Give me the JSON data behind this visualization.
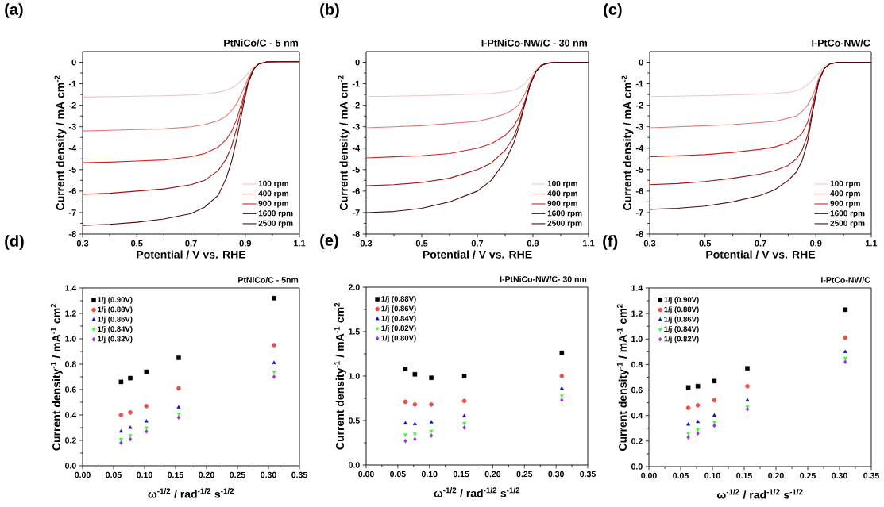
{
  "chart_data": [
    {
      "type": "line",
      "title": "PtNiCo/C - 5 nm",
      "xlabel": "Potential / V vs. RHE",
      "ylabel": "Current density / mA cm$^{-2}$",
      "annotations": [
        "(a)"
      ],
      "xlim": [
        0.3,
        1.1
      ],
      "ylim": [
        -8,
        0.5
      ],
      "xticks": [
        0.3,
        0.5,
        0.7,
        0.9,
        1.1
      ],
      "yticks": [
        -8,
        -7,
        -6,
        -5,
        -4,
        -3,
        -2,
        -1,
        0
      ],
      "legend": "bottom right",
      "grid": false,
      "line_style": "solid",
      "x": [
        0.3,
        0.4,
        0.5,
        0.6,
        0.7,
        0.75,
        0.8,
        0.83,
        0.85,
        0.87,
        0.89,
        0.91,
        0.93,
        0.95,
        0.98,
        1.02,
        1.1
      ],
      "series": [
        {
          "name": "100 rpm",
          "color": "#f2c4c4",
          "values": [
            -1.62,
            -1.6,
            -1.58,
            -1.56,
            -1.52,
            -1.48,
            -1.4,
            -1.3,
            -1.2,
            -1.05,
            -0.8,
            -0.5,
            -0.22,
            -0.06,
            0.02,
            null,
            null
          ]
        },
        {
          "name": "400 rpm",
          "color": "#e07a7a",
          "values": [
            -3.2,
            -3.17,
            -3.13,
            -3.1,
            -3.0,
            -2.9,
            -2.72,
            -2.5,
            -2.25,
            -1.9,
            -1.35,
            -0.75,
            -0.3,
            -0.07,
            0.02,
            0.03,
            0.03
          ]
        },
        {
          "name": "900 rpm",
          "color": "#d42020",
          "values": [
            -4.68,
            -4.65,
            -4.6,
            -4.55,
            -4.4,
            -4.25,
            -3.95,
            -3.6,
            -3.2,
            -2.6,
            -1.75,
            -0.9,
            -0.33,
            -0.08,
            0.02,
            0.03,
            0.03
          ]
        },
        {
          "name": "1600 rpm",
          "color": "#9e1414",
          "values": [
            -6.15,
            -6.1,
            -6.0,
            -5.9,
            -5.7,
            -5.5,
            -5.05,
            -4.5,
            -3.9,
            -3.0,
            -1.95,
            -0.95,
            -0.35,
            -0.08,
            0.02,
            0.03,
            0.03
          ]
        },
        {
          "name": "2500 rpm",
          "color": "#4a0c0c",
          "values": [
            -7.6,
            -7.55,
            -7.45,
            -7.3,
            -7.05,
            -6.75,
            -6.2,
            -5.4,
            -4.6,
            -3.5,
            -2.2,
            -1.0,
            -0.35,
            -0.08,
            0.02,
            0.03,
            0.03
          ]
        }
      ]
    },
    {
      "type": "line",
      "title": "I-PtNiCo-NW/C - 30 nm",
      "xlabel": "Potential / V vs. RHE",
      "ylabel": "Current density / mA cm$^{-2}$",
      "annotations": [
        "(b)"
      ],
      "xlim": [
        0.3,
        1.1
      ],
      "ylim": [
        -8,
        0.5
      ],
      "xticks": [
        0.3,
        0.5,
        0.7,
        0.9,
        1.1
      ],
      "yticks": [
        -8,
        -7,
        -6,
        -5,
        -4,
        -3,
        -2,
        -1,
        0
      ],
      "legend": "bottom right",
      "grid": false,
      "line_style": "solid",
      "x": [
        0.3,
        0.4,
        0.5,
        0.6,
        0.7,
        0.75,
        0.8,
        0.83,
        0.85,
        0.87,
        0.89,
        0.91,
        0.93,
        0.95,
        0.98,
        1.02,
        1.1
      ],
      "series": [
        {
          "name": "100 rpm",
          "color": "#f2c4c4",
          "values": [
            -1.6,
            -1.58,
            -1.55,
            -1.52,
            -1.48,
            -1.45,
            -1.38,
            -1.3,
            -1.2,
            -1.0,
            -0.7,
            -0.35,
            -0.13,
            -0.04,
            0,
            0,
            0
          ]
        },
        {
          "name": "400 rpm",
          "color": "#e07a7a",
          "values": [
            -3.05,
            -3.0,
            -2.95,
            -2.85,
            -2.75,
            -2.6,
            -2.4,
            -2.2,
            -1.95,
            -1.5,
            -0.9,
            -0.42,
            -0.15,
            -0.05,
            0,
            0,
            0
          ]
        },
        {
          "name": "900 rpm",
          "color": "#d42020",
          "values": [
            -4.45,
            -4.4,
            -4.35,
            -4.25,
            -4.0,
            -3.8,
            -3.4,
            -3.0,
            -2.55,
            -1.85,
            -1.0,
            -0.45,
            -0.15,
            -0.05,
            0,
            0,
            0
          ]
        },
        {
          "name": "1600 rpm",
          "color": "#9e1414",
          "values": [
            -5.75,
            -5.7,
            -5.6,
            -5.4,
            -5.0,
            -4.7,
            -4.1,
            -3.5,
            -2.85,
            -1.95,
            -1.05,
            -0.45,
            -0.15,
            -0.05,
            0,
            0,
            0
          ]
        },
        {
          "name": "2500 rpm",
          "color": "#4a0c0c",
          "values": [
            -7.0,
            -6.95,
            -6.8,
            -6.5,
            -6.0,
            -5.5,
            -4.6,
            -3.8,
            -3.0,
            -2.0,
            -1.05,
            -0.45,
            -0.15,
            -0.05,
            0,
            0,
            0
          ]
        }
      ]
    },
    {
      "type": "line",
      "title": "I-PtCo-NW/C",
      "xlabel": "Potential / V vs. RHE",
      "ylabel": "Current density / mA cm$^{-2}$",
      "annotations": [
        "(c)"
      ],
      "xlim": [
        0.3,
        1.1
      ],
      "ylim": [
        -8,
        0.5
      ],
      "xticks": [
        0.3,
        0.5,
        0.7,
        0.9,
        1.1
      ],
      "yticks": [
        -8,
        -7,
        -6,
        -5,
        -4,
        -3,
        -2,
        -1,
        0
      ],
      "legend": "bottom right",
      "grid": false,
      "line_style": "solid",
      "x": [
        0.3,
        0.4,
        0.5,
        0.6,
        0.7,
        0.75,
        0.8,
        0.83,
        0.85,
        0.87,
        0.89,
        0.91,
        0.93,
        0.95,
        0.98,
        1.02,
        1.1
      ],
      "series": [
        {
          "name": "100 rpm",
          "color": "#f2c4c4",
          "values": [
            -1.6,
            -1.58,
            -1.55,
            -1.52,
            -1.48,
            -1.45,
            -1.4,
            -1.32,
            -1.22,
            -1.05,
            -0.8,
            -0.5,
            -0.2,
            -0.06,
            0,
            0,
            0
          ]
        },
        {
          "name": "400 rpm",
          "color": "#e07a7a",
          "values": [
            -3.05,
            -3.0,
            -2.95,
            -2.9,
            -2.8,
            -2.75,
            -2.6,
            -2.5,
            -2.3,
            -2.0,
            -1.5,
            -0.75,
            -0.28,
            -0.08,
            0,
            0,
            0
          ]
        },
        {
          "name": "900 rpm",
          "color": "#d42020",
          "values": [
            -4.4,
            -4.35,
            -4.3,
            -4.2,
            -4.05,
            -3.95,
            -3.75,
            -3.55,
            -3.3,
            -2.8,
            -1.85,
            -0.85,
            -0.3,
            -0.08,
            0,
            null,
            null
          ]
        },
        {
          "name": "1600 rpm",
          "color": "#9e1414",
          "values": [
            -5.7,
            -5.65,
            -5.55,
            -5.4,
            -5.2,
            -5.05,
            -4.8,
            -4.5,
            -4.1,
            -3.4,
            -2.1,
            -0.9,
            -0.3,
            -0.08,
            0,
            0,
            0
          ]
        },
        {
          "name": "2500 rpm",
          "color": "#4a0c0c",
          "values": [
            -6.85,
            -6.8,
            -6.7,
            -6.5,
            -6.2,
            -5.95,
            -5.5,
            -5.1,
            -4.6,
            -3.7,
            -2.2,
            -0.9,
            -0.3,
            -0.08,
            0,
            0,
            0
          ]
        }
      ]
    },
    {
      "type": "scatter",
      "title": "PtNiCo/C - 5nm",
      "xlabel": "ω$^{-1/2}$ / rad$^{-1/2}$ s$^{-1/2}$",
      "ylabel": "Current density$^{-1}$ / mA$^{-1}$ cm$^{2}$",
      "annotations": [
        "(d)"
      ],
      "xlim": [
        0,
        0.35
      ],
      "ylim": [
        0,
        1.4
      ],
      "xticks": [
        {
          "value": 0,
          "label": "0.00"
        },
        0.05,
        {
          "value": 0.1,
          "label": "0.10"
        },
        0.15,
        {
          "value": 0.2,
          "label": "0.20"
        },
        0.25,
        {
          "value": 0.3,
          "label": "0.30"
        },
        0.35
      ],
      "yticks": [
        {
          "value": 0,
          "label": "0.0"
        },
        0.2,
        0.4,
        0.6,
        0.8,
        {
          "value": 1,
          "label": "1.0"
        },
        1.2,
        1.4
      ],
      "legend": "top left",
      "grid": false,
      "x": [
        0.062,
        0.077,
        0.103,
        0.155,
        0.309
      ],
      "series": [
        {
          "name": "1/j (0.90V)",
          "color": "#000000",
          "marker": "square",
          "values": [
            0.66,
            0.69,
            0.74,
            0.85,
            1.32
          ]
        },
        {
          "name": "1/j (0.88V)",
          "color": "#e8504a",
          "marker": "circle",
          "values": [
            0.4,
            0.42,
            0.47,
            0.61,
            0.95
          ]
        },
        {
          "name": "1/j (0.86V)",
          "color": "#1010c8",
          "marker": "triangle",
          "values": [
            0.27,
            0.3,
            0.35,
            0.46,
            0.81
          ]
        },
        {
          "name": "1/j (0.84V)",
          "color": "#33ff33",
          "marker": "triangle-down",
          "values": [
            0.21,
            0.24,
            0.3,
            0.41,
            0.74
          ]
        },
        {
          "name": "1/j (0.82V)",
          "color": "#9933cc",
          "marker": "diamond",
          "values": [
            0.18,
            0.21,
            0.27,
            0.38,
            0.7
          ]
        }
      ]
    },
    {
      "type": "scatter",
      "title": "I-PtNiCo-NW/C- 30 nm",
      "xlabel": "ω$^{-1/2}$ / rad$^{-1/2}$ s$^{-1/2}$",
      "ylabel": "Current density$^{-1}$ / mA$^{-1}$ cm$^{2}$",
      "annotations": [
        "(e)"
      ],
      "xlim": [
        0,
        0.35
      ],
      "ylim": [
        0,
        2
      ],
      "xticks": [
        {
          "value": 0,
          "label": "0.00"
        },
        0.05,
        {
          "value": 0.1,
          "label": "0.10"
        },
        0.15,
        {
          "value": 0.2,
          "label": "0.20"
        },
        0.25,
        {
          "value": 0.3,
          "label": "0.30"
        },
        0.35
      ],
      "yticks": [
        {
          "value": 0,
          "label": "0.0"
        },
        0.5,
        {
          "value": 1,
          "label": "1.0"
        },
        1.5,
        {
          "value": 2,
          "label": "2.0"
        }
      ],
      "legend": "top left",
      "grid": false,
      "x": [
        0.062,
        0.077,
        0.103,
        0.155,
        0.309
      ],
      "series": [
        {
          "name": "1/j (0.88V)",
          "color": "#000000",
          "marker": "square",
          "values": [
            1.08,
            1.02,
            0.98,
            1.0,
            1.26
          ]
        },
        {
          "name": "1/j (0.86V)",
          "color": "#e8504a",
          "marker": "circle",
          "values": [
            0.71,
            0.68,
            0.68,
            0.72,
            1.0
          ]
        },
        {
          "name": "1/j (0.84V)",
          "color": "#1010c8",
          "marker": "triangle",
          "values": [
            0.47,
            0.46,
            0.48,
            0.55,
            0.86
          ]
        },
        {
          "name": "1/j (0.82V)",
          "color": "#33ff33",
          "marker": "triangle-down",
          "values": [
            0.34,
            0.35,
            0.38,
            0.47,
            0.78
          ]
        },
        {
          "name": "1/j (0.80V)",
          "color": "#9933cc",
          "marker": "diamond",
          "values": [
            0.27,
            0.29,
            0.33,
            0.42,
            0.73
          ]
        }
      ]
    },
    {
      "type": "scatter",
      "title": "I-PtCo-NW/C",
      "xlabel": "ω$^{-1/2}$ / rad$^{-1/2}$ s$^{-1/2}$",
      "ylabel": "Current density$^{-1}$ / mA$^{-1}$ cm$^{2}$",
      "annotations": [
        "(f)"
      ],
      "xlim": [
        0,
        0.35
      ],
      "ylim": [
        0,
        1.4
      ],
      "xticks": [
        {
          "value": 0,
          "label": "0.00"
        },
        0.05,
        {
          "value": 0.1,
          "label": "0.10"
        },
        0.15,
        {
          "value": 0.2,
          "label": "0.20"
        },
        0.25,
        {
          "value": 0.3,
          "label": "0.30"
        },
        0.35
      ],
      "yticks": [
        {
          "value": 0,
          "label": "0.0"
        },
        0.2,
        0.4,
        0.6,
        0.8,
        {
          "value": 1,
          "label": "1.0"
        },
        1.2,
        1.4
      ],
      "legend": "top left",
      "grid": false,
      "x": [
        0.062,
        0.077,
        0.103,
        0.155,
        0.309
      ],
      "series": [
        {
          "name": "1/j (0.90V)",
          "color": "#000000",
          "marker": "square",
          "values": [
            0.62,
            0.63,
            0.67,
            0.77,
            1.23
          ]
        },
        {
          "name": "1/j (0.88V)",
          "color": "#e8504a",
          "marker": "circle",
          "values": [
            0.46,
            0.48,
            0.52,
            0.63,
            1.01
          ]
        },
        {
          "name": "1/j (0.86V)",
          "color": "#1010c8",
          "marker": "triangle",
          "values": [
            0.33,
            0.35,
            0.4,
            0.52,
            0.9
          ]
        },
        {
          "name": "1/j (0.84V)",
          "color": "#33ff33",
          "marker": "triangle-down",
          "values": [
            0.26,
            0.29,
            0.35,
            0.47,
            0.85
          ]
        },
        {
          "name": "1/j (0.82V)",
          "color": "#9933cc",
          "marker": "diamond",
          "values": [
            0.23,
            0.26,
            0.32,
            0.45,
            0.82
          ]
        }
      ]
    }
  ]
}
